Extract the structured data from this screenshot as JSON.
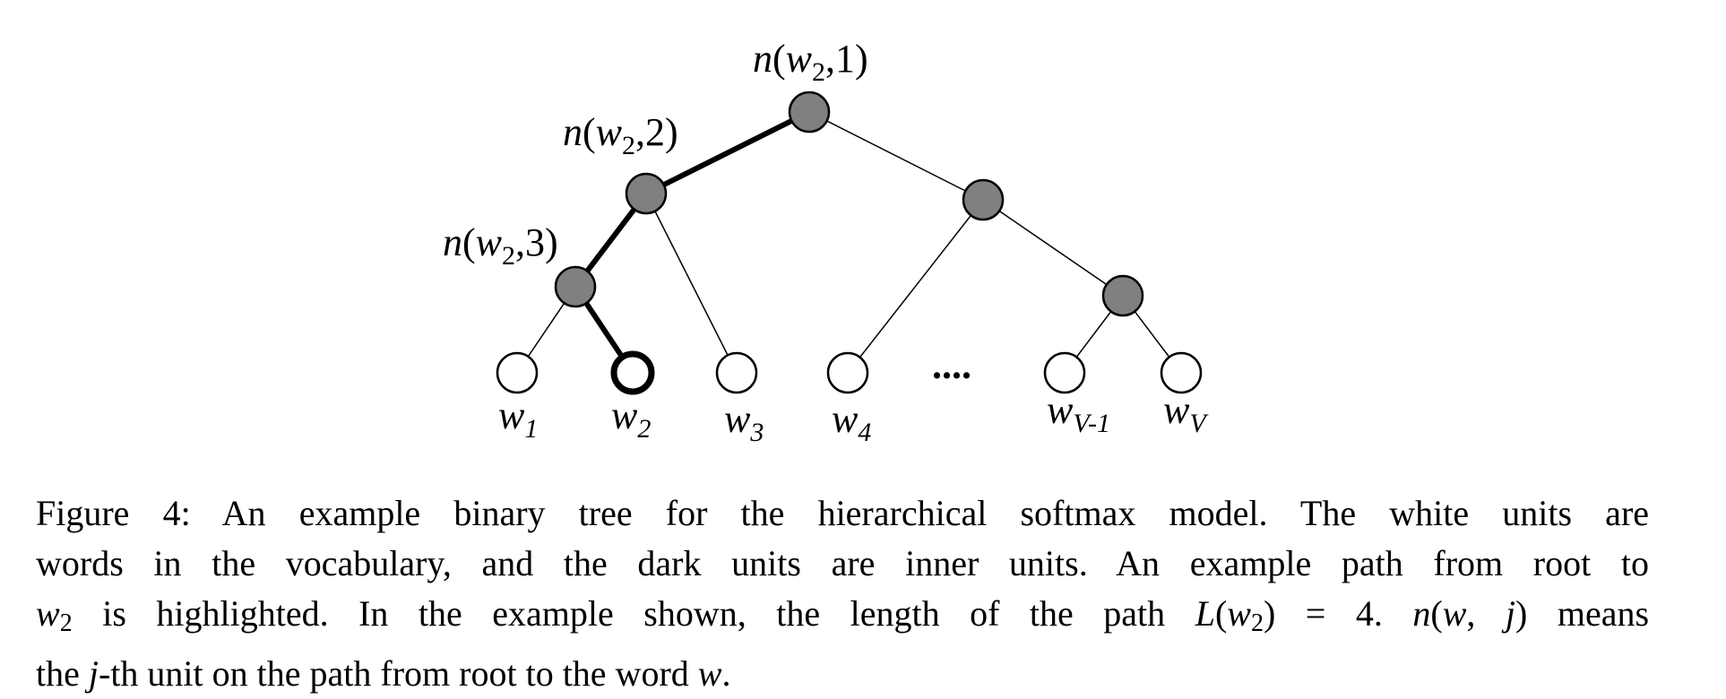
{
  "diagram": {
    "inner_node_labels": [
      {
        "n": "n",
        "w": "w",
        "sub": "2",
        "j": "1"
      },
      {
        "n": "n",
        "w": "w",
        "sub": "2",
        "j": "2"
      },
      {
        "n": "n",
        "w": "w",
        "sub": "2",
        "j": "3"
      }
    ],
    "leaf_labels": [
      {
        "base": "w",
        "sub": "1"
      },
      {
        "base": "w",
        "sub": "2"
      },
      {
        "base": "w",
        "sub": "3"
      },
      {
        "base": "w",
        "sub": "4"
      },
      {
        "base": "w",
        "sub": "V-1"
      },
      {
        "base": "w",
        "sub": "V"
      }
    ],
    "ellipsis": "....",
    "colors": {
      "inner_node": "#808080",
      "leaf_node": "#ffffff",
      "edge": "#000000"
    }
  },
  "caption": {
    "figure_label": "Figure 4:",
    "line1_rest": "An example binary tree for the hierarchical softmax model. The white units are",
    "line2": "words in the vocabulary, and the dark units are inner units. An example path from root to",
    "line3_a": "is highlighted. In the example shown, the length of the path",
    "line3_b": "means",
    "line4_a": "the",
    "line4_b": "-th unit on the path from root to the word",
    "math": {
      "w": "w",
      "two": "2",
      "L": "L",
      "eq": "= 4.",
      "n": "n",
      "j": "j",
      "comma": ","
    }
  }
}
